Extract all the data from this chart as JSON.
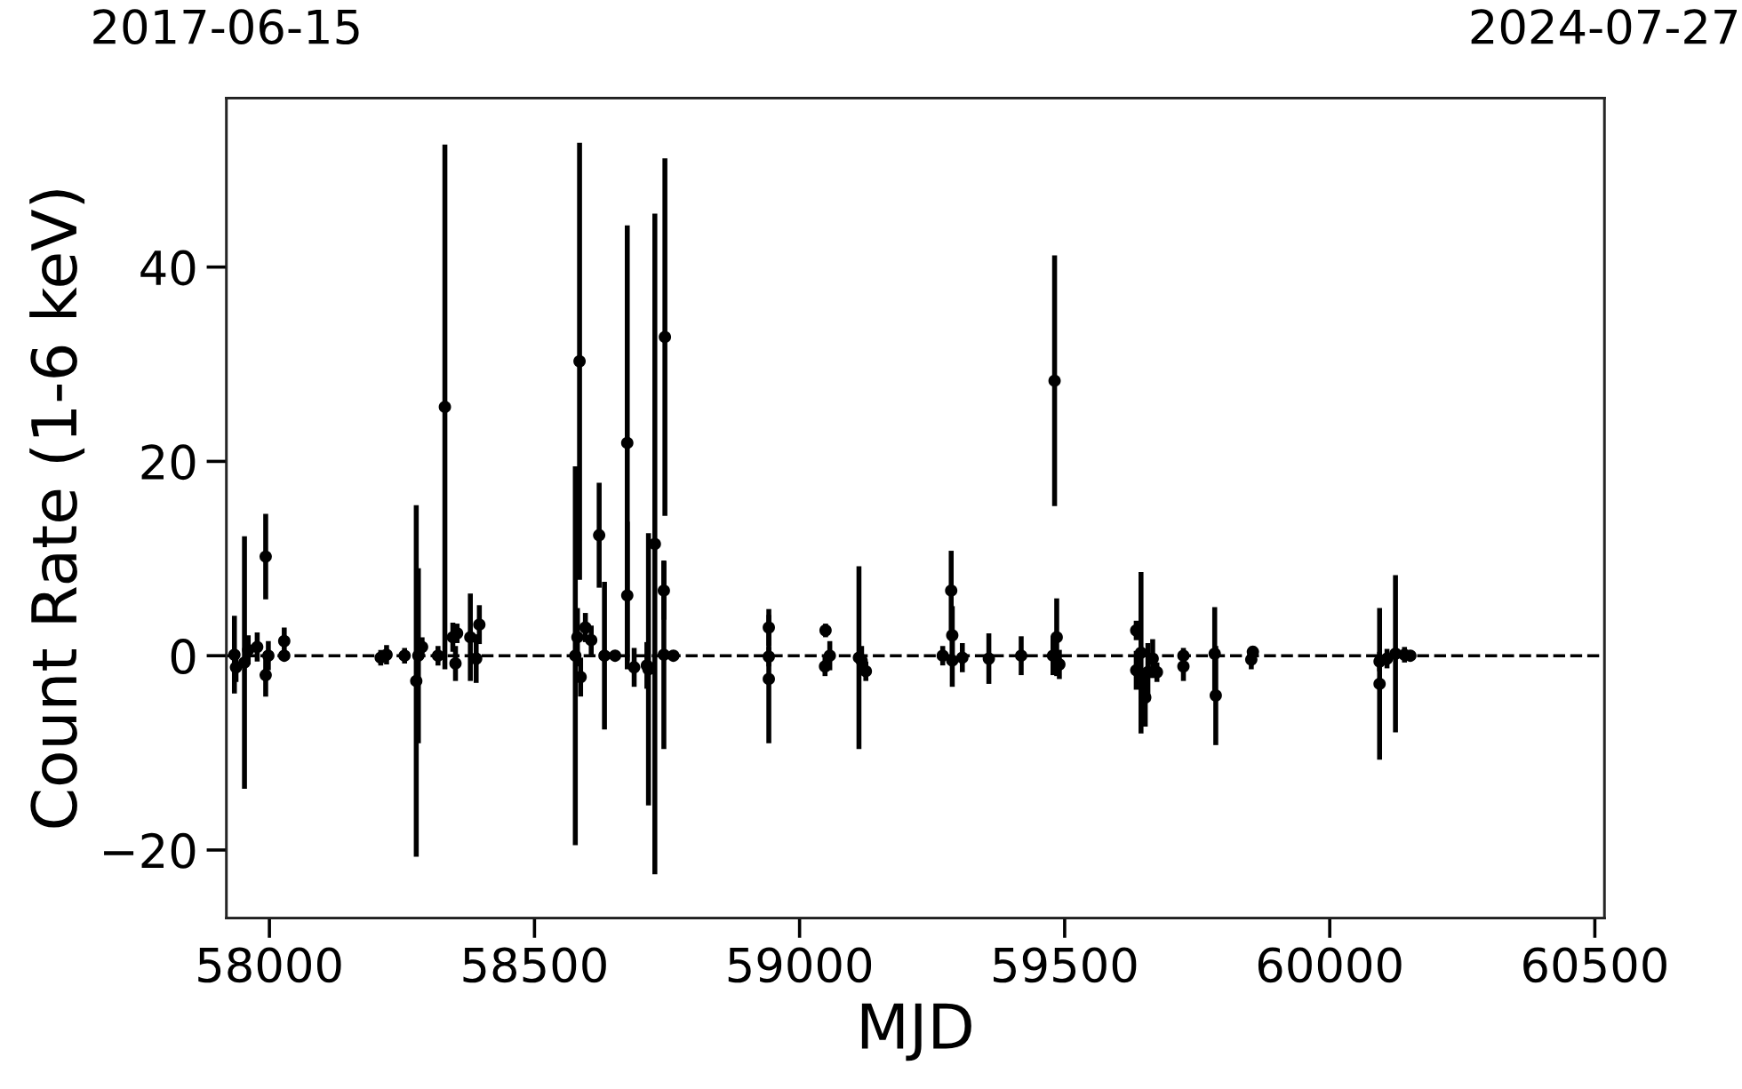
{
  "chart_data": {
    "type": "scatter",
    "xlabel": "MJD",
    "ylabel": "Count Rate (1-6 keV)",
    "xlim": [
      57919,
      60518
    ],
    "xticks": [
      58000,
      58500,
      59000,
      59500,
      60000,
      60500
    ],
    "ylim": [
      -27,
      57.4
    ],
    "yticks": [
      {
        "value": -20,
        "label": "−20"
      },
      0,
      20,
      40
    ],
    "x2lim": [
      "2017-06-15",
      "2024-07-27"
    ],
    "x2ticks": [
      "2017-06-15",
      "2024-07-27"
    ],
    "marker": "circle",
    "grid": false,
    "legend": false,
    "ref_lines": [
      {
        "axis": "y",
        "value": 0,
        "color": "#000000",
        "line_style": "dashed"
      }
    ],
    "series": [
      {
        "color": "#000000",
        "x": [
          57934,
          57937,
          57953,
          57960,
          57977,
          57993,
          57993,
          57998,
          58028,
          58028,
          58210,
          58221,
          58255,
          58277,
          58281,
          58288,
          58331,
          58318,
          58346,
          58354,
          58351,
          58379,
          58396,
          58390,
          58585,
          58577,
          58581,
          58587,
          58596,
          58607,
          58622,
          58632,
          58652,
          58675,
          58675,
          58688,
          58715,
          58727,
          58712,
          58746,
          58744,
          58744,
          58762,
          58942,
          58942,
          58942,
          59049,
          59048,
          59057,
          59112,
          59125,
          59117,
          59270,
          59286,
          59288,
          59288,
          59307,
          59357,
          59418,
          59481,
          59485,
          59478,
          59490,
          59635,
          59644,
          59635,
          59652,
          59657,
          59666,
          59674,
          59724,
          59724,
          59783,
          59785,
          59852,
          59855,
          60094,
          60094,
          60108,
          60124,
          60141,
          60152
        ],
        "values": [
          0.1,
          -1.2,
          -0.7,
          0.6,
          0.9,
          10.2,
          -2.0,
          0,
          1.5,
          0,
          -0.2,
          0.1,
          0,
          -2.6,
          0,
          0.9,
          25.6,
          0,
          1.9,
          2.3,
          -0.8,
          1.9,
          3.2,
          -0.3,
          30.3,
          0,
          1.9,
          -2.2,
          2.9,
          1.6,
          12.4,
          0,
          0,
          21.9,
          6.2,
          -1.2,
          -1.4,
          11.5,
          -1.0,
          32.8,
          6.7,
          0.1,
          0,
          2.9,
          -0.1,
          -2.4,
          2.6,
          -1.1,
          0,
          -0.2,
          -1.6,
          -0.5,
          0,
          6.7,
          2.1,
          -0.5,
          -0.2,
          -0.3,
          0,
          28.3,
          1.9,
          0,
          -0.9,
          2.6,
          0.3,
          -1.5,
          -4.3,
          -1.7,
          -0.3,
          -1.7,
          0,
          -1.1,
          0.2,
          -4.1,
          -0.4,
          0.4,
          -2.9,
          -0.6,
          -0.3,
          0.2,
          0.1,
          0
        ],
        "errors": [
          4.0,
          1.5,
          13.0,
          1.5,
          1.5,
          4.4,
          2.2,
          1.5,
          1.4,
          0.5,
          0.8,
          1.0,
          0.8,
          18.1,
          9.0,
          1.0,
          27.0,
          1.0,
          1.5,
          1.0,
          1.8,
          4.5,
          2.0,
          2.5,
          22.5,
          19.5,
          3.0,
          2.0,
          1.5,
          1.5,
          5.4,
          7.6,
          0.5,
          22.4,
          7.6,
          2.0,
          14.0,
          34.0,
          2.4,
          18.4,
          3.0,
          9.7,
          0.5,
          1.9,
          1.0,
          6.6,
          0.7,
          1.0,
          1.5,
          9.4,
          1.0,
          1.5,
          1.0,
          4.1,
          3.0,
          2.7,
          1.5,
          2.6,
          2.0,
          12.9,
          4.0,
          2.0,
          1.5,
          1.0,
          8.3,
          2.0,
          3.0,
          3.0,
          2.0,
          1.0,
          0.8,
          1.5,
          4.8,
          5.1,
          1.0,
          0.5,
          7.8,
          1.0,
          1.0,
          8.1,
          0.8,
          0.5
        ]
      }
    ]
  }
}
